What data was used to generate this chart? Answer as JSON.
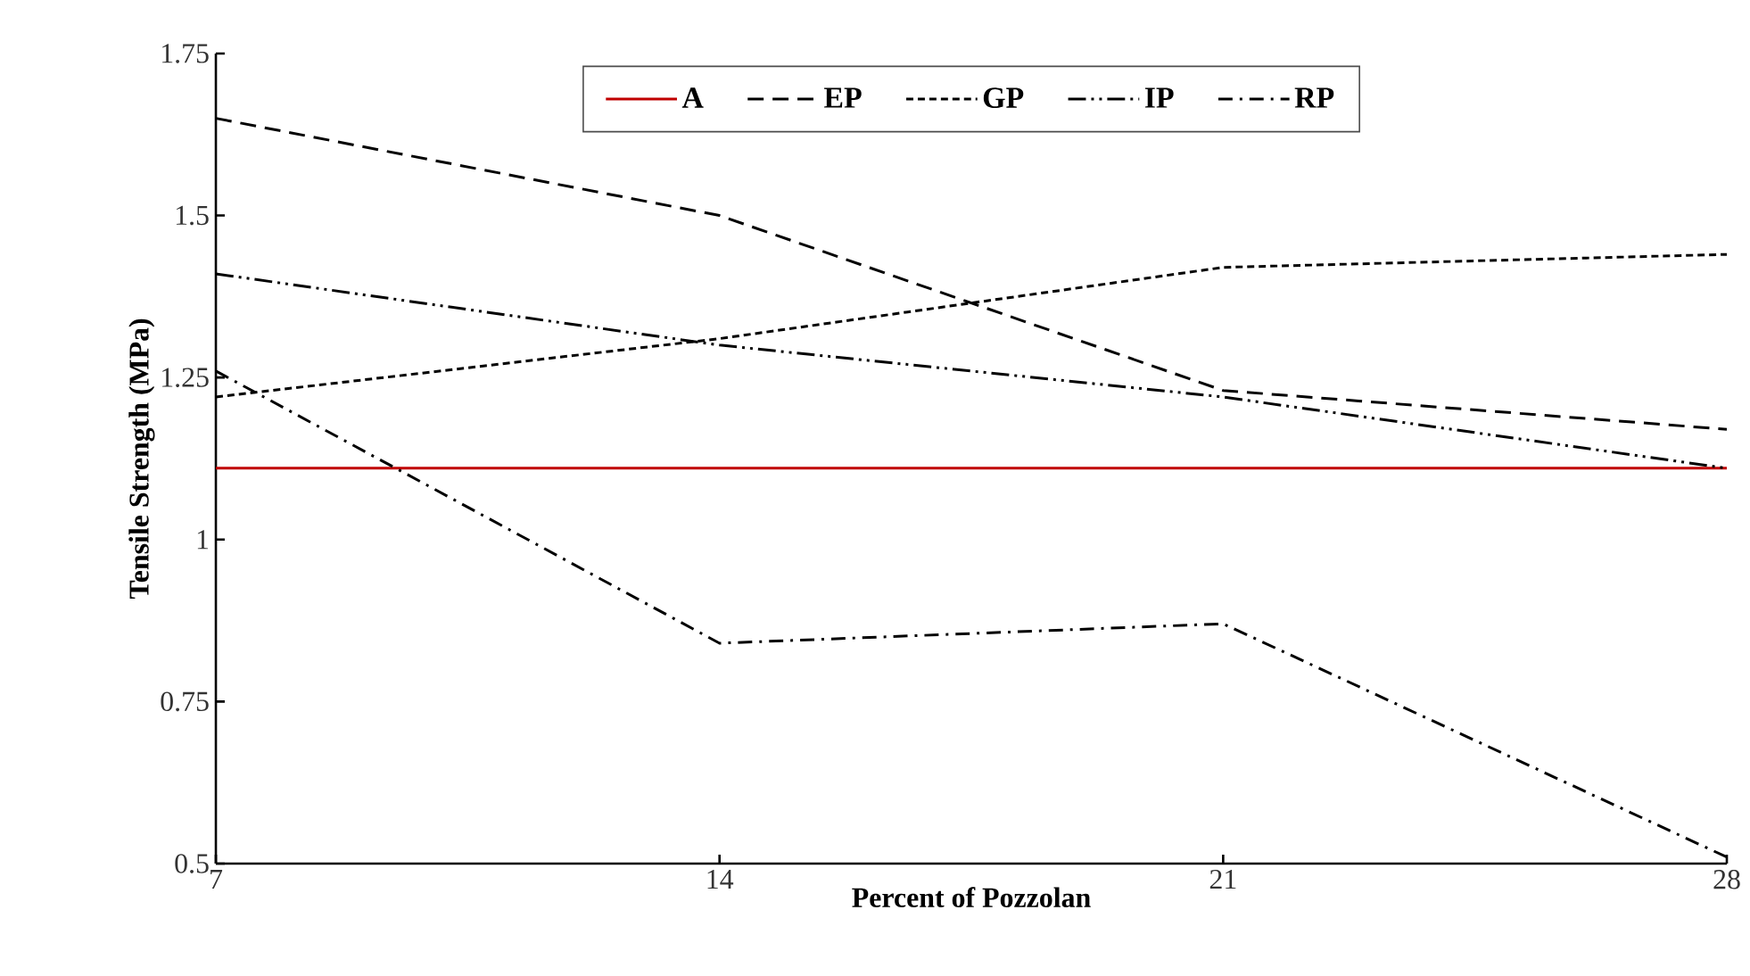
{
  "chart_data": {
    "type": "line",
    "xlabel": "Percent of Pozzolan",
    "ylabel": "Tensile Strength (MPa)",
    "x": [
      7,
      14,
      21,
      28
    ],
    "xlim": [
      7,
      28
    ],
    "xticks": [
      7,
      14,
      21,
      28
    ],
    "ylim": [
      0.5,
      1.75
    ],
    "yticks": [
      0.5,
      0.75,
      1,
      1.25,
      1.5,
      1.75
    ],
    "legend": "top",
    "grid": false,
    "series": [
      {
        "name": "A",
        "color": "#c00000",
        "line_style": "solid",
        "values": [
          1.11,
          1.11,
          1.11,
          1.11
        ]
      },
      {
        "name": "EP",
        "color": "#000000",
        "line_style": "dashed",
        "values": [
          1.65,
          1.5,
          1.23,
          1.17
        ]
      },
      {
        "name": "GP",
        "color": "#000000",
        "line_style": "dotted",
        "values": [
          1.22,
          1.31,
          1.42,
          1.44
        ]
      },
      {
        "name": "IP",
        "color": "#000000",
        "line_style": "dashdotdotted",
        "values": [
          1.41,
          1.3,
          1.22,
          1.11
        ]
      },
      {
        "name": "RP",
        "color": "#000000",
        "line_style": "dashdotted",
        "values": [
          1.26,
          0.84,
          0.87,
          0.51
        ]
      }
    ]
  }
}
